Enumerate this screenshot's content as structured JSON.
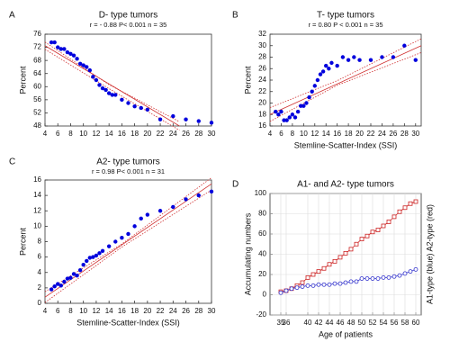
{
  "chart_data": [
    {
      "type": "scatter",
      "panel_label": "A",
      "title": "D- type tumors",
      "subtitle": "r = - 0.88  P< 0.001  n = 35",
      "ylabel": "Percent",
      "x": [
        5,
        5.5,
        6,
        6.5,
        7,
        7.5,
        8,
        8.5,
        9,
        9.5,
        10,
        10.5,
        11,
        11.5,
        12,
        12.5,
        13,
        13.5,
        14,
        14.5,
        15,
        16,
        17,
        18,
        19,
        20,
        22,
        24,
        26,
        28,
        30
      ],
      "values": [
        73.5,
        73.5,
        72,
        71.5,
        71.5,
        70.5,
        70,
        69.5,
        68.5,
        67,
        66.5,
        66,
        65,
        63,
        62,
        60.5,
        59.5,
        59,
        58,
        57.5,
        57.5,
        56,
        55,
        54,
        53.5,
        53,
        50,
        51,
        50,
        49.5,
        49
      ],
      "color": "#0000dd",
      "fit_color": "#d03030",
      "fit": {
        "x": [
          4,
          25
        ],
        "y": [
          72.5,
          48
        ]
      },
      "band_upper": {
        "x": [
          4,
          14,
          25
        ],
        "y": [
          73.6,
          60.6,
          49.3
        ]
      },
      "band_lower": {
        "x": [
          4,
          14,
          25
        ],
        "y": [
          71.4,
          59.4,
          46.7
        ]
      },
      "xlim": [
        4,
        30
      ],
      "ylim": [
        48,
        76
      ],
      "xticks": [
        4,
        6,
        8,
        10,
        12,
        14,
        16,
        18,
        20,
        22,
        24,
        26,
        28,
        30
      ],
      "yticks": [
        48,
        52,
        56,
        60,
        64,
        68,
        72,
        76
      ],
      "grid": false
    },
    {
      "type": "scatter",
      "panel_label": "B",
      "title": "T- type tumors",
      "subtitle": "r = 0.80  P < 0.001  n = 35",
      "ylabel": "Percent",
      "xlabel": "Stemline-Scatter-Index (SSI)",
      "x": [
        5,
        5.5,
        6,
        6.5,
        7,
        7.5,
        8,
        8.5,
        9,
        9.5,
        10,
        10.5,
        11,
        11.5,
        12,
        12.5,
        13,
        13.5,
        14,
        14.5,
        15,
        16,
        17,
        18,
        19,
        20,
        22,
        24,
        26,
        28,
        30
      ],
      "values": [
        18.5,
        18,
        18.5,
        17,
        17,
        17.5,
        18,
        17.5,
        18.5,
        19.5,
        19.5,
        20,
        21,
        22,
        23,
        24,
        25,
        25.5,
        26.5,
        26,
        27,
        26.5,
        28,
        27.5,
        28,
        27.5,
        27.5,
        28,
        28,
        30,
        27.5
      ],
      "color": "#0000dd",
      "fit_color": "#d03030",
      "fit": {
        "x": [
          4,
          31
        ],
        "y": [
          18,
          30
        ]
      },
      "band_upper": {
        "x": [
          4,
          16,
          31
        ],
        "y": [
          19.2,
          23.9,
          31.2
        ]
      },
      "band_lower": {
        "x": [
          4,
          16,
          31
        ],
        "y": [
          16.8,
          23.1,
          28.8
        ]
      },
      "xlim": [
        4,
        31
      ],
      "ylim": [
        16,
        32
      ],
      "xticks": [
        4,
        6,
        8,
        10,
        12,
        14,
        16,
        18,
        20,
        22,
        24,
        26,
        28,
        30
      ],
      "yticks": [
        16,
        18,
        20,
        22,
        24,
        26,
        28,
        30,
        32
      ],
      "grid": false
    },
    {
      "type": "scatter",
      "panel_label": "C",
      "title": "A2- type tumors",
      "subtitle": "r = 0.98   P< 0.001   n = 31",
      "ylabel": "Percent",
      "xlabel": "Stemline-Scatter-Index (SSI)",
      "x": [
        5,
        5.5,
        6,
        6.5,
        7,
        7.5,
        8,
        8.5,
        9,
        9.5,
        10,
        10.5,
        11,
        11.5,
        12,
        12.5,
        13,
        14,
        15,
        16,
        17,
        18,
        19,
        20,
        22,
        24,
        26,
        28,
        30
      ],
      "values": [
        1.8,
        2.2,
        2.5,
        2.3,
        2.8,
        3.2,
        3.3,
        3.8,
        3.6,
        4.3,
        5,
        5.5,
        5.9,
        6,
        6.2,
        6.5,
        6.8,
        7.4,
        8,
        8.5,
        9,
        10,
        11,
        11.5,
        12,
        12.5,
        13.5,
        14,
        14.5
      ],
      "color": "#0000dd",
      "fit_color": "#d03030",
      "fit": {
        "x": [
          4,
          30
        ],
        "y": [
          0.8,
          15.5
        ]
      },
      "band_upper": {
        "x": [
          4,
          16,
          30
        ],
        "y": [
          1.5,
          7.7,
          16.3
        ]
      },
      "band_lower": {
        "x": [
          4,
          16,
          30
        ],
        "y": [
          0.1,
          7.3,
          14.7
        ]
      },
      "xlim": [
        4,
        30
      ],
      "ylim": [
        0,
        16
      ],
      "xticks": [
        4,
        6,
        8,
        10,
        12,
        14,
        16,
        18,
        20,
        22,
        24,
        26,
        28,
        30
      ],
      "yticks": [
        0,
        2,
        4,
        6,
        8,
        10,
        12,
        14,
        16
      ],
      "grid": false
    },
    {
      "type": "line",
      "panel_label": "D",
      "title": "A1- and A2- type tumors",
      "ylabel": "Accumulating numbers",
      "y2label": "A1-type (blue) A2-type (red)",
      "xlabel": "Age of patients",
      "x": [
        35,
        36,
        37,
        38,
        39,
        40,
        41,
        42,
        43,
        44,
        45,
        46,
        47,
        48,
        49,
        50,
        51,
        52,
        53,
        54,
        55,
        56,
        57,
        58,
        59,
        60
      ],
      "series": [
        {
          "color": "#cc2222",
          "marker": "square",
          "values": [
            3,
            4,
            6,
            9,
            12,
            17,
            20,
            23,
            26,
            30,
            33,
            37,
            41,
            45,
            50,
            55,
            58,
            62,
            64,
            68,
            72,
            77,
            82,
            86,
            90,
            92
          ]
        },
        {
          "color": "#3333cc",
          "marker": "circle",
          "values": [
            2,
            4,
            6,
            7,
            8,
            9,
            9,
            10,
            10,
            10,
            11,
            11,
            12,
            13,
            13,
            16,
            16,
            16,
            16,
            17,
            17,
            18,
            19,
            21,
            23,
            25
          ]
        }
      ],
      "xlim": [
        33,
        61
      ],
      "ylim": [
        -20,
        100
      ],
      "xticks": [
        35,
        36,
        40,
        42,
        44,
        46,
        48,
        50,
        52,
        54,
        56,
        58,
        60
      ],
      "yticks": [
        -20,
        0,
        20,
        40,
        60,
        80,
        100
      ],
      "grid": true
    }
  ]
}
